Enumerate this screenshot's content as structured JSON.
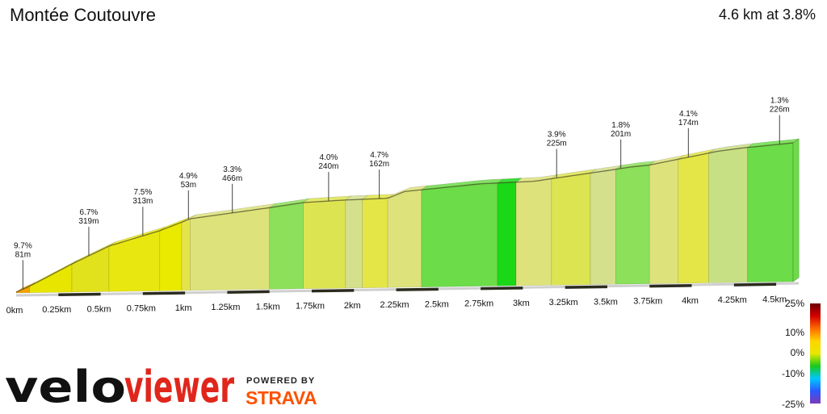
{
  "header": {
    "title": "Montée Coutouvre",
    "summary": "4.6 km at 3.8%"
  },
  "brand": {
    "logo": "veloviewer",
    "logo_part1": "velo",
    "logo_part2": "viewer",
    "powered_by": "POWERED BY",
    "strava": "STRAVA"
  },
  "chart_data": {
    "type": "area",
    "title": "Montée Coutouvre",
    "xlabel": "",
    "ylabel": "",
    "xlim": [
      0,
      4.6
    ],
    "x_ticks": [
      "0km",
      "0.25km",
      "0.5km",
      "0.75km",
      "1km",
      "1.25km",
      "1.5km",
      "1.75km",
      "2km",
      "2.25km",
      "2.5km",
      "2.75km",
      "3km",
      "3.25km",
      "3.5km",
      "3.75km",
      "4km",
      "4.25km",
      "4.5km"
    ],
    "profile_x": [
      0,
      0.08,
      0.33,
      0.55,
      0.85,
      0.98,
      1.03,
      1.5,
      1.7,
      1.95,
      2.2,
      2.3,
      2.5,
      2.75,
      3.07,
      3.17,
      3.45,
      3.65,
      3.75,
      3.95,
      4.15,
      4.3,
      4.6
    ],
    "profile_y": [
      0,
      0.7,
      3.3,
      5.4,
      7.2,
      8.2,
      8.6,
      9.9,
      10.5,
      10.8,
      11.0,
      11.8,
      12.2,
      12.7,
      13.0,
      13.3,
      14.1,
      14.7,
      14.9,
      15.7,
      16.5,
      16.9,
      17.5
    ],
    "segments": [
      {
        "start": 0,
        "end": 0.08,
        "color": "#f2a400"
      },
      {
        "start": 0.08,
        "end": 0.33,
        "color": "#e8e600"
      },
      {
        "start": 0.33,
        "end": 0.55,
        "color": "#e2e21c"
      },
      {
        "start": 0.55,
        "end": 0.85,
        "color": "#e8e810"
      },
      {
        "start": 0.85,
        "end": 0.98,
        "color": "#eaea00"
      },
      {
        "start": 0.98,
        "end": 1.03,
        "color": "#e4e44a"
      },
      {
        "start": 1.03,
        "end": 1.5,
        "color": "#dde27a"
      },
      {
        "start": 1.5,
        "end": 1.7,
        "color": "#8ce05a"
      },
      {
        "start": 1.7,
        "end": 1.95,
        "color": "#dde452"
      },
      {
        "start": 1.95,
        "end": 2.05,
        "color": "#d4e08c"
      },
      {
        "start": 2.05,
        "end": 2.2,
        "color": "#e3e646"
      },
      {
        "start": 2.2,
        "end": 2.4,
        "color": "#dde27a"
      },
      {
        "start": 2.4,
        "end": 2.85,
        "color": "#6cdc48"
      },
      {
        "start": 2.85,
        "end": 2.96,
        "color": "#1ad818"
      },
      {
        "start": 2.96,
        "end": 3.17,
        "color": "#dde27a"
      },
      {
        "start": 3.17,
        "end": 3.4,
        "color": "#dde452"
      },
      {
        "start": 3.4,
        "end": 3.55,
        "color": "#d4e08c"
      },
      {
        "start": 3.55,
        "end": 3.75,
        "color": "#8ce05a"
      },
      {
        "start": 3.75,
        "end": 3.92,
        "color": "#dde27a"
      },
      {
        "start": 3.92,
        "end": 4.1,
        "color": "#e3e646"
      },
      {
        "start": 4.1,
        "end": 4.33,
        "color": "#c8e084"
      },
      {
        "start": 4.33,
        "end": 4.6,
        "color": "#6cdc48"
      }
    ],
    "annotations": [
      {
        "x": 0.04,
        "grade": "9.7%",
        "length": "81m"
      },
      {
        "x": 0.43,
        "grade": "6.7%",
        "length": "319m"
      },
      {
        "x": 0.75,
        "grade": "7.5%",
        "length": "313m"
      },
      {
        "x": 1.02,
        "grade": "4.9%",
        "length": "53m"
      },
      {
        "x": 1.28,
        "grade": "3.3%",
        "length": "466m"
      },
      {
        "x": 1.85,
        "grade": "4.0%",
        "length": "240m"
      },
      {
        "x": 2.15,
        "grade": "4.7%",
        "length": "162m"
      },
      {
        "x": 3.2,
        "grade": "3.9%",
        "length": "225m"
      },
      {
        "x": 3.58,
        "grade": "1.8%",
        "length": "201m"
      },
      {
        "x": 3.98,
        "grade": "4.1%",
        "length": "174m"
      },
      {
        "x": 4.52,
        "grade": "1.3%",
        "length": "226m"
      }
    ],
    "color_scale": {
      "labels": [
        "25%",
        "10%",
        "0%",
        "-10%",
        "-25%"
      ],
      "stops": [
        "#6a0000",
        "#d40000",
        "#ff6a00",
        "#ffd400",
        "#e8e800",
        "#19c919",
        "#00c8ff",
        "#2a5aff",
        "#7a3ab8"
      ]
    }
  }
}
